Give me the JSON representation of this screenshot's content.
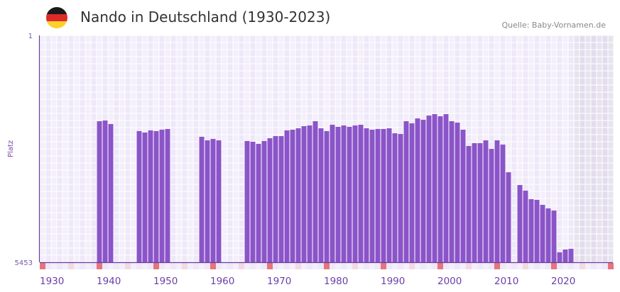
{
  "header": {
    "title": "Nando in Deutschland (1930-2023)",
    "source": "Quelle: Baby-Vornamen.de",
    "flag_icon": "germany-flag-icon"
  },
  "colors": {
    "bar": "#8b54c8",
    "axis": "#6a3a9e",
    "marker": "#e5757a",
    "marker_light": "#f3d9e1",
    "future": "#e4e0ec"
  },
  "chart_data": {
    "type": "bar",
    "title": "Nando in Deutschland (1930-2023)",
    "xlabel": "",
    "ylabel": "Platz",
    "y_inverted": true,
    "ylim": [
      1,
      5453
    ],
    "y_tick_labels": [
      "1",
      "5453"
    ],
    "xlim": [
      1930,
      2030
    ],
    "x_tick_labels": [
      "1930",
      "1940",
      "1950",
      "1960",
      "1970",
      "1980",
      "1990",
      "2000",
      "2010",
      "2020"
    ],
    "grid": true,
    "forecast_from": 2024,
    "x": [
      1940,
      1941,
      1942,
      1947,
      1948,
      1949,
      1950,
      1951,
      1952,
      1958,
      1959,
      1960,
      1961,
      1966,
      1967,
      1968,
      1969,
      1970,
      1971,
      1972,
      1973,
      1974,
      1975,
      1976,
      1977,
      1978,
      1979,
      1980,
      1981,
      1982,
      1983,
      1984,
      1985,
      1986,
      1987,
      1988,
      1989,
      1990,
      1991,
      1992,
      1993,
      1994,
      1995,
      1996,
      1997,
      1998,
      1999,
      2000,
      2001,
      2002,
      2003,
      2004,
      2005,
      2006,
      2007,
      2008,
      2009,
      2010,
      2011,
      2012,
      2014,
      2015,
      2016,
      2017,
      2018,
      2019,
      2020,
      2021,
      2022,
      2023
    ],
    "values": [
      2063,
      2046,
      2131,
      2301,
      2335,
      2284,
      2301,
      2267,
      2250,
      2438,
      2523,
      2489,
      2523,
      2540,
      2557,
      2608,
      2540,
      2472,
      2421,
      2421,
      2284,
      2267,
      2233,
      2182,
      2165,
      2063,
      2233,
      2301,
      2148,
      2199,
      2165,
      2199,
      2165,
      2148,
      2233,
      2267,
      2250,
      2250,
      2233,
      2353,
      2370,
      2063,
      2114,
      1995,
      2029,
      1927,
      1893,
      1944,
      1893,
      2063,
      2097,
      2267,
      2659,
      2591,
      2591,
      2523,
      2728,
      2523,
      2625,
      3290,
      3597,
      3733,
      3937,
      3954,
      4074,
      4159,
      4210,
      5215,
      5147,
      5130
    ]
  }
}
